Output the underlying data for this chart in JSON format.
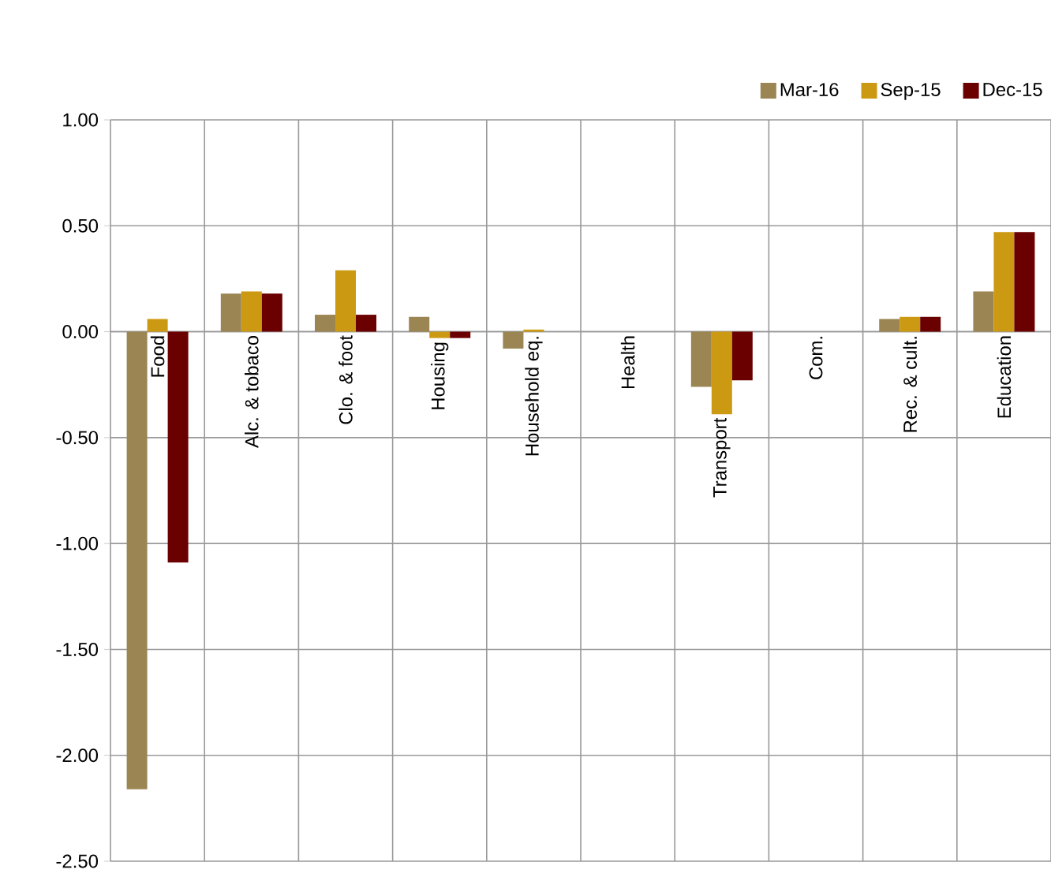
{
  "chart_data": {
    "type": "bar",
    "categories": [
      "Food",
      "Alc. & tobaco",
      "Clo. & foot",
      "Housing",
      "Household eq.",
      "Health",
      "Transport",
      "Com.",
      "Rec. & cult.",
      "Education"
    ],
    "series": [
      {
        "name": "Mar-16",
        "color": "#9b8553",
        "values": [
          -2.16,
          0.18,
          0.08,
          0.07,
          -0.08,
          null,
          -0.26,
          null,
          0.06,
          0.19
        ]
      },
      {
        "name": "Sep-15",
        "color": "#cc9a12",
        "values": [
          0.06,
          0.19,
          0.29,
          -0.03,
          0.01,
          null,
          -0.39,
          null,
          0.07,
          0.47
        ]
      },
      {
        "name": "Dec-15",
        "color": "#6b0000",
        "values": [
          -1.09,
          0.18,
          0.08,
          -0.03,
          null,
          null,
          -0.23,
          null,
          0.07,
          0.47
        ]
      }
    ],
    "ylim": [
      -2.5,
      1.0
    ],
    "yticks": [
      {
        "value": -2.5,
        "label": "-2.50"
      },
      {
        "value": -2.0,
        "label": "-2.00"
      },
      {
        "value": -1.5,
        "label": "-1.50"
      },
      {
        "value": -1.0,
        "label": "-1.00"
      },
      {
        "value": -0.5,
        "label": "-0.50"
      },
      {
        "value": 0.0,
        "label": "0.00"
      },
      {
        "value": 0.5,
        "label": "0.50"
      },
      {
        "value": 1.0,
        "label": "1.00"
      }
    ],
    "grid": true,
    "legend": "top right"
  }
}
